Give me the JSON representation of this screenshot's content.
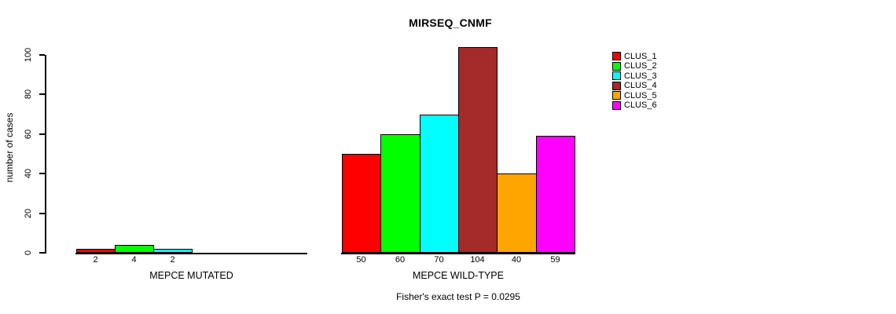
{
  "chart_data": {
    "type": "bar",
    "title": "MIRSEQ_CNMF",
    "ylabel": "number of cases",
    "ylim": [
      0,
      110
    ],
    "yticks": [
      0,
      20,
      40,
      60,
      80,
      100
    ],
    "grid": false,
    "legend_position": "right",
    "clusters": [
      {
        "name": "CLUS_1",
        "color": "#FF0000"
      },
      {
        "name": "CLUS_2",
        "color": "#00FF00"
      },
      {
        "name": "CLUS_3",
        "color": "#00FFFF"
      },
      {
        "name": "CLUS_4",
        "color": "#A52A2A"
      },
      {
        "name": "CLUS_5",
        "color": "#FFA500"
      },
      {
        "name": "CLUS_6",
        "color": "#FF00FF"
      }
    ],
    "groups": [
      {
        "label": "MEPCE MUTATED",
        "values": [
          2,
          4,
          2,
          0,
          0,
          0
        ],
        "bar_labels": [
          "2",
          "4",
          "2",
          "",
          "",
          ""
        ]
      },
      {
        "label": "MEPCE WILD-TYPE",
        "values": [
          50,
          60,
          70,
          104,
          40,
          59
        ],
        "bar_labels": [
          "50",
          "60",
          "70",
          "104",
          "40",
          "59"
        ]
      }
    ],
    "annotation": "Fisher's exact test P = 0.0295"
  }
}
